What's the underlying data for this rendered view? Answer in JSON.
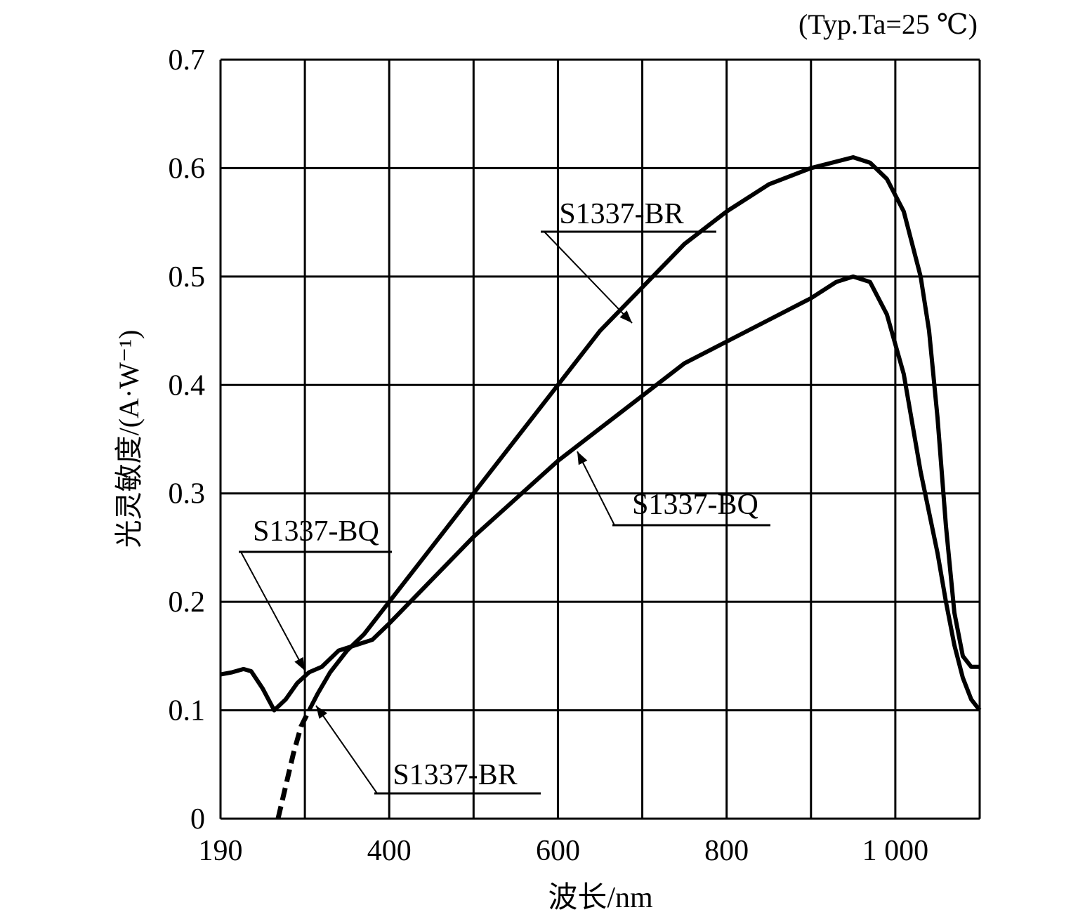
{
  "chart_data": {
    "type": "line",
    "title": "",
    "note": "(Typ.Ta=25 ℃)",
    "xlabel": "波长/nm",
    "ylabel": "光灵敏度/(A·W⁻¹)",
    "x_scale": "piecewise: left cell spans 190–300 nm, then 100 nm per grid cell",
    "xlim": [
      190,
      1100
    ],
    "ylim": [
      0,
      0.7
    ],
    "x_tick_labels": [
      "190",
      "400",
      "600",
      "800",
      "1 000"
    ],
    "x_tick_values": [
      190,
      400,
      600,
      800,
      1000
    ],
    "x_grid_values": [
      190,
      300,
      400,
      500,
      600,
      700,
      800,
      900,
      1000,
      1100
    ],
    "y_ticks": [
      0,
      0.1,
      0.2,
      0.3,
      0.4,
      0.5,
      0.6,
      0.7
    ],
    "y_tick_labels": [
      "0",
      "0.1",
      "0.2",
      "0.3",
      "0.4",
      "0.5",
      "0.6",
      "0.7"
    ],
    "grid": true,
    "series": [
      {
        "name": "S1337-BQ",
        "x": [
          190,
          205,
          220,
          230,
          245,
          260,
          275,
          290,
          305,
          320,
          340,
          360,
          380,
          400,
          450,
          500,
          550,
          600,
          650,
          700,
          750,
          800,
          850,
          900,
          930,
          950,
          970,
          990,
          1010,
          1030,
          1050,
          1060,
          1070,
          1080,
          1090,
          1100
        ],
        "y": [
          0.133,
          0.135,
          0.138,
          0.136,
          0.12,
          0.1,
          0.11,
          0.125,
          0.135,
          0.14,
          0.155,
          0.16,
          0.165,
          0.18,
          0.22,
          0.26,
          0.295,
          0.33,
          0.36,
          0.39,
          0.42,
          0.44,
          0.46,
          0.48,
          0.495,
          0.5,
          0.495,
          0.465,
          0.41,
          0.32,
          0.245,
          0.2,
          0.16,
          0.13,
          0.11,
          0.1
        ]
      },
      {
        "name": "S1337-BR",
        "x": [
          265,
          275,
          285,
          295,
          305,
          315,
          330,
          350,
          370,
          390,
          400,
          450,
          500,
          550,
          600,
          650,
          700,
          750,
          800,
          850,
          900,
          950,
          970,
          990,
          1010,
          1030,
          1040,
          1050,
          1060,
          1070,
          1080,
          1090,
          1100
        ],
        "y": [
          0.0,
          0.03,
          0.06,
          0.085,
          0.1,
          0.115,
          0.135,
          0.155,
          0.17,
          0.19,
          0.2,
          0.25,
          0.3,
          0.35,
          0.4,
          0.45,
          0.49,
          0.53,
          0.56,
          0.585,
          0.6,
          0.61,
          0.605,
          0.59,
          0.56,
          0.5,
          0.45,
          0.37,
          0.27,
          0.19,
          0.15,
          0.14,
          0.14
        ]
      }
    ],
    "annotations": [
      {
        "text": "S1337-BR",
        "series": "S1337-BR",
        "points_to_x": 700
      },
      {
        "text": "S1337-BQ",
        "series": "S1337-BQ",
        "points_to_x": 630
      },
      {
        "text": "S1337-BQ",
        "series": "S1337-BQ",
        "points_to_x": 300
      },
      {
        "text": "S1337-BR",
        "series": "S1337-BR",
        "points_to_x": 310
      }
    ]
  }
}
